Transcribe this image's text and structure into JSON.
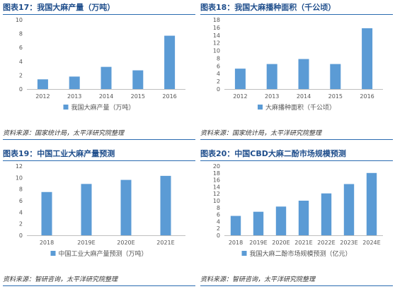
{
  "colors": {
    "bar": "#5b9bd5",
    "accent": "#1f4e8c",
    "axis": "#bfbfbf"
  },
  "panels": [
    {
      "title": "图表17：我国大麻产量（万吨）",
      "source": "资料来源：国家统计局，太平洋研究院整理",
      "chart_data": {
        "type": "bar",
        "categories": [
          "2012",
          "2013",
          "2014",
          "2015",
          "2016"
        ],
        "series": [
          {
            "name": "我国大麻产量（万吨）",
            "values": [
              1.4,
              1.8,
              3.2,
              2.7,
              7.7
            ]
          }
        ],
        "ylim": [
          0,
          10
        ],
        "yticks": [
          "0",
          "2",
          "4",
          "6",
          "8",
          "10"
        ],
        "legend": "bottom",
        "grid": false
      }
    },
    {
      "title": "图表18：我国大麻播种面积（千公顷）",
      "source": "资料来源：国家统计局，太平洋研究院整理",
      "chart_data": {
        "type": "bar",
        "categories": [
          "2012",
          "2013",
          "2014",
          "2015",
          "2016"
        ],
        "series": [
          {
            "name": "大麻播种面积（千公顷）",
            "values": [
              5.3,
              6.5,
              7.8,
              6.5,
              15.8
            ]
          }
        ],
        "ylim": [
          0,
          18
        ],
        "yticks": [
          "0",
          "2",
          "4",
          "6",
          "8",
          "10",
          "12",
          "14",
          "16",
          "18"
        ],
        "legend": "bottom",
        "grid": false
      }
    },
    {
      "title": "图表19：中国工业大麻产量预测",
      "source": "资料来源：智研咨询，太平洋研究院整理",
      "chart_data": {
        "type": "bar",
        "categories": [
          "2018",
          "2019E",
          "2020E",
          "2021E"
        ],
        "series": [
          {
            "name": "中国工业大麻产量预测（万吨）",
            "values": [
              7.5,
              8.9,
              9.6,
              10.3
            ]
          }
        ],
        "ylim": [
          0,
          12
        ],
        "yticks": [
          "0",
          "2",
          "4",
          "6",
          "8",
          "10",
          "12"
        ],
        "legend": "bottom",
        "grid": false
      }
    },
    {
      "title": "图表20：中国CBD大麻二酚市场规模预测",
      "source": "资料来源：智研咨询，太平洋研究院整理",
      "chart_data": {
        "type": "bar",
        "categories": [
          "2018",
          "2019E",
          "2020E",
          "2021E",
          "2022E",
          "2023E",
          "2024E"
        ],
        "series": [
          {
            "name": "我国大麻二酚市场规模预测（亿元）",
            "values": [
              5.6,
              6.8,
              8.3,
              10.0,
              12.1,
              14.8,
              18.0
            ]
          }
        ],
        "ylim": [
          0,
          20
        ],
        "yticks": [
          "0",
          "2",
          "4",
          "6",
          "8",
          "10",
          "12",
          "14",
          "16",
          "18",
          "20"
        ],
        "legend": "bottom",
        "grid": false
      }
    }
  ]
}
